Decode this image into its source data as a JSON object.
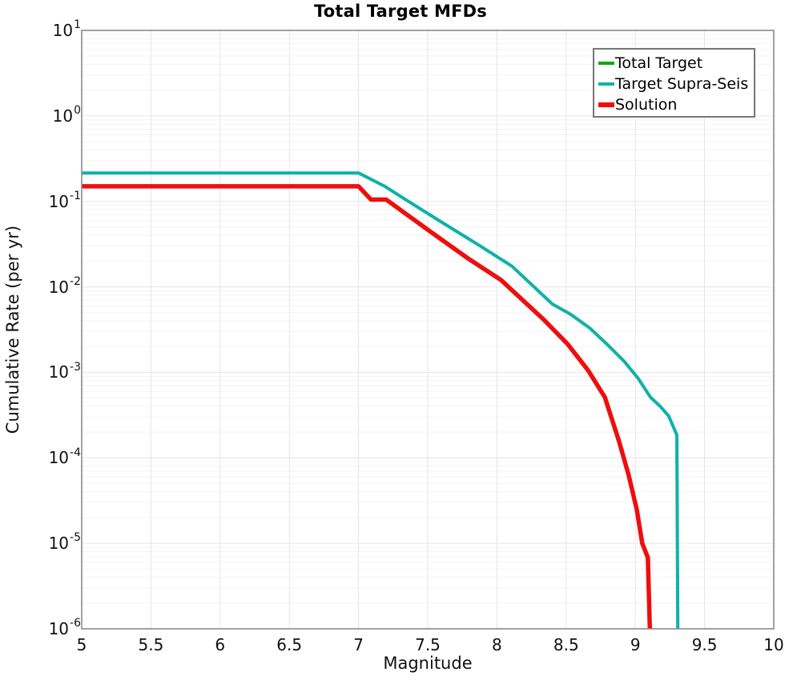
{
  "title": "Total Target MFDs",
  "axes": {
    "x": {
      "label": "Magnitude",
      "min": 5,
      "max": 10,
      "tick_labels": [
        "5",
        "5.5",
        "6",
        "6.5",
        "7",
        "7.5",
        "8",
        "8.5",
        "9",
        "9.5",
        "10"
      ],
      "tick_values": [
        5,
        5.5,
        6,
        6.5,
        7,
        7.5,
        8,
        8.5,
        9,
        9.5,
        10
      ],
      "gridline_step": 0.5
    },
    "y": {
      "label": "Cumulative Rate (per yr)",
      "scale": "log",
      "tick_exponents": [
        1,
        0,
        -1,
        -2,
        -3,
        -4,
        -5,
        -6
      ],
      "max_exp": 1,
      "min_exp": -6
    }
  },
  "legend": {
    "position": "top-right",
    "items": [
      {
        "label": "Total Target",
        "color": "#0ca80c",
        "thickness": 4
      },
      {
        "label": "Target Supra-Seis",
        "color": "#0db2aa",
        "thickness": 4
      },
      {
        "label": "Solution",
        "color": "#ee0e0e",
        "thickness": 6
      }
    ]
  },
  "colors": {
    "background": "#ffffff",
    "plot_border": "#8a8a8a",
    "grid_major": "#e6e6e6",
    "grid_minor": "#f3f3f3",
    "text": "#000000"
  },
  "chart_data": {
    "type": "line",
    "title": "Total Target MFDs",
    "xlabel": "Magnitude",
    "ylabel": "Cumulative Rate (per yr)",
    "x_range": [
      5,
      10
    ],
    "y_range": [
      1e-06,
      10
    ],
    "y_scale": "log",
    "grid": true,
    "legend_position": "top-right",
    "series": [
      {
        "name": "Total Target",
        "color": "#0ca80c",
        "line_width": 3.5,
        "points": [
          [
            5.0,
            0.215
          ],
          [
            7.0,
            0.215
          ],
          [
            7.19,
            0.15
          ],
          [
            7.42,
            0.087
          ],
          [
            7.65,
            0.051
          ],
          [
            7.88,
            0.03
          ],
          [
            8.11,
            0.0174
          ],
          [
            8.4,
            0.0063
          ],
          [
            8.53,
            0.0048
          ],
          [
            8.67,
            0.0033
          ],
          [
            8.8,
            0.0021
          ],
          [
            8.92,
            0.00134
          ],
          [
            9.02,
            0.00085
          ],
          [
            9.11,
            0.00051
          ],
          [
            9.18,
            0.0004
          ],
          [
            9.24,
            0.00031
          ],
          [
            9.3,
            0.000185
          ],
          [
            9.307,
            1e-06
          ]
        ]
      },
      {
        "name": "Target Supra-Seis",
        "color": "#0db2aa",
        "line_width": 4,
        "points": [
          [
            5.0,
            0.215
          ],
          [
            7.0,
            0.215
          ],
          [
            7.19,
            0.15
          ],
          [
            7.42,
            0.087
          ],
          [
            7.65,
            0.051
          ],
          [
            7.88,
            0.03
          ],
          [
            8.11,
            0.0174
          ],
          [
            8.4,
            0.0063
          ],
          [
            8.53,
            0.0048
          ],
          [
            8.67,
            0.0033
          ],
          [
            8.8,
            0.0021
          ],
          [
            8.92,
            0.00134
          ],
          [
            9.02,
            0.00085
          ],
          [
            9.11,
            0.00051
          ],
          [
            9.18,
            0.0004
          ],
          [
            9.24,
            0.00031
          ],
          [
            9.3,
            0.000185
          ],
          [
            9.307,
            1e-06
          ]
        ]
      },
      {
        "name": "Solution",
        "color": "#ee0e0e",
        "line_width": 5.5,
        "points": [
          [
            5.0,
            0.15
          ],
          [
            7.0,
            0.15
          ],
          [
            7.09,
            0.105
          ],
          [
            7.2,
            0.105
          ],
          [
            7.53,
            0.043
          ],
          [
            7.8,
            0.021
          ],
          [
            8.03,
            0.012
          ],
          [
            8.34,
            0.0041
          ],
          [
            8.51,
            0.00215
          ],
          [
            8.66,
            0.00105
          ],
          [
            8.78,
            0.00051
          ],
          [
            8.82,
            0.00032
          ],
          [
            8.88,
            0.00016
          ],
          [
            8.95,
            6.4e-05
          ],
          [
            9.01,
            2.5e-05
          ],
          [
            9.05,
            1e-05
          ],
          [
            9.09,
            6.8e-06
          ],
          [
            9.105,
            1e-06
          ]
        ]
      }
    ]
  }
}
